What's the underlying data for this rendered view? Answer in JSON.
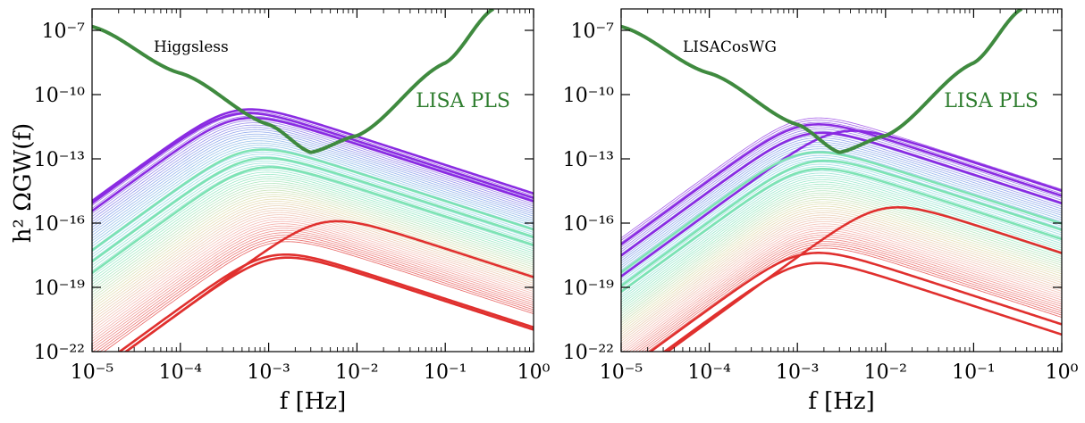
{
  "figure": {
    "ylabel": "h² ΩGW(f)"
  },
  "colors": {
    "purple": "#8a2be2",
    "mint": "#7de3b4",
    "red": "#e0302e",
    "lisa_green": "#3f8a3f",
    "lisa_label": "#2e7d2e"
  },
  "chart_data": [
    {
      "type": "line",
      "panel_label": "Higgsless",
      "xlabel": "f [Hz]",
      "ylabel": "h² ΩGW(f)",
      "xscale": "log",
      "yscale": "log",
      "xlim": [
        1e-05,
        1
      ],
      "ylim": [
        1e-22,
        1e-06
      ],
      "xticks": [
        "10⁻⁵",
        "10⁻⁴",
        "10⁻³",
        "10⁻²",
        "10⁻¹",
        "10⁰"
      ],
      "yticks": [
        "10⁻²²",
        "10⁻¹⁹",
        "10⁻¹⁶",
        "10⁻¹³",
        "10⁻¹⁰",
        "10⁻⁷"
      ],
      "lisa": {
        "label": "LISA PLS",
        "points": [
          [
            1e-05,
            1.5e-07
          ],
          [
            0.0001,
            1e-09
          ],
          [
            0.001,
            4e-12
          ],
          [
            0.003,
            2e-13
          ],
          [
            0.01,
            1.2e-12
          ],
          [
            0.1,
            3e-09
          ],
          [
            0.35,
            1e-06
          ]
        ]
      },
      "family": {
        "count": 60,
        "peak_f_range": [
          0.00035,
          0.00095
        ],
        "peak_amp_range": [
          1.5e-11,
          1e-17
        ]
      },
      "highlighted_series": [
        {
          "color": "purple",
          "peak_f": 0.00036,
          "peak": 1.5e-11
        },
        {
          "color": "purple",
          "peak_f": 0.00034,
          "peak": 1e-11
        },
        {
          "color": "purple",
          "peak_f": 0.00038,
          "peak": 6e-12
        },
        {
          "color": "mint",
          "peak_f": 0.0005,
          "peak": 2e-13
        },
        {
          "color": "mint",
          "peak_f": 0.00055,
          "peak": 8e-14
        },
        {
          "color": "mint",
          "peak_f": 0.0006,
          "peak": 3e-14
        },
        {
          "color": "red",
          "peak_f": 0.0035,
          "peak": 9e-17
        },
        {
          "color": "red",
          "peak_f": 0.0009,
          "peak": 2.5e-18
        },
        {
          "color": "red",
          "peak_f": 0.00095,
          "peak": 1.8e-18
        }
      ]
    },
    {
      "type": "line",
      "panel_label": "LISACosWG",
      "xlabel": "f [Hz]",
      "ylabel": "",
      "xscale": "log",
      "yscale": "log",
      "xlim": [
        1e-05,
        1
      ],
      "ylim": [
        1e-22,
        1e-06
      ],
      "xticks": [
        "10⁻⁵",
        "10⁻⁴",
        "10⁻³",
        "10⁻²",
        "10⁻¹",
        "10⁰"
      ],
      "yticks": [
        "10⁻²²",
        "10⁻¹⁹",
        "10⁻¹⁶",
        "10⁻¹³",
        "10⁻¹⁰",
        "10⁻⁷"
      ],
      "lisa": {
        "label": "LISA PLS",
        "points": [
          [
            1e-05,
            1.5e-07
          ],
          [
            0.0001,
            1e-09
          ],
          [
            0.001,
            4e-12
          ],
          [
            0.003,
            2e-13
          ],
          [
            0.01,
            1.2e-12
          ],
          [
            0.1,
            3e-09
          ],
          [
            0.35,
            1e-06
          ]
        ]
      },
      "family": {
        "count": 60,
        "peak_f_range": [
          0.001,
          0.0012
        ],
        "peak_amp_range": [
          6e-12,
          5e-18
        ]
      },
      "highlighted_series": [
        {
          "color": "purple",
          "peak_f": 0.001,
          "peak": 3e-12
        },
        {
          "color": "purple",
          "peak_f": 0.0025,
          "peak": 1.5e-12
        },
        {
          "color": "purple",
          "peak_f": 0.0011,
          "peak": 1.2e-12
        },
        {
          "color": "mint",
          "peak_f": 0.001,
          "peak": 1.5e-13
        },
        {
          "color": "mint",
          "peak_f": 0.0012,
          "peak": 6e-14
        },
        {
          "color": "mint",
          "peak_f": 0.0011,
          "peak": 2.5e-14
        },
        {
          "color": "red",
          "peak_f": 0.008,
          "peak": 4e-16
        },
        {
          "color": "red",
          "peak_f": 0.001,
          "peak": 3e-18
        },
        {
          "color": "red",
          "peak_f": 0.001,
          "peak": 1e-18
        }
      ]
    }
  ]
}
